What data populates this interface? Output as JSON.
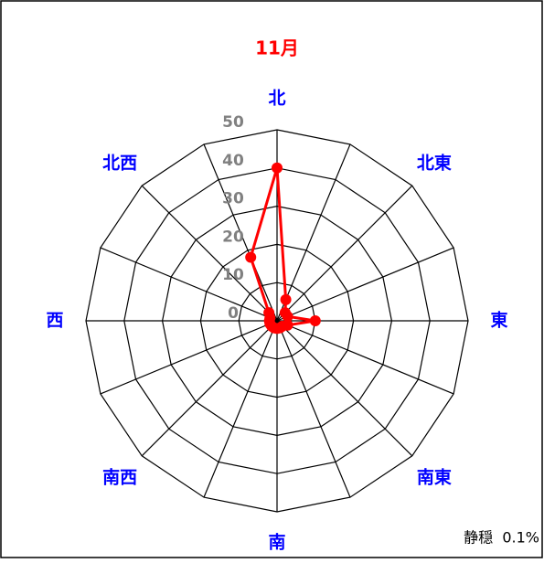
{
  "chart_data": {
    "type": "radar",
    "title": "11月",
    "categories": [
      "北",
      null,
      "北東",
      null,
      "東",
      null,
      "南東",
      null,
      "南",
      null,
      "南西",
      null,
      "西",
      null,
      "北西",
      null
    ],
    "series": [
      {
        "name": "11月",
        "color": "#ff0000",
        "values": [
          40,
          6,
          3,
          3,
          10,
          3,
          2,
          2,
          2,
          2,
          2,
          2,
          2,
          2,
          3,
          18
        ]
      }
    ],
    "ylim": [
      0,
      50
    ],
    "yticks": [
      0,
      10,
      20,
      30,
      40,
      50
    ],
    "grid": true,
    "annotation": "静穏  0.1%"
  }
}
